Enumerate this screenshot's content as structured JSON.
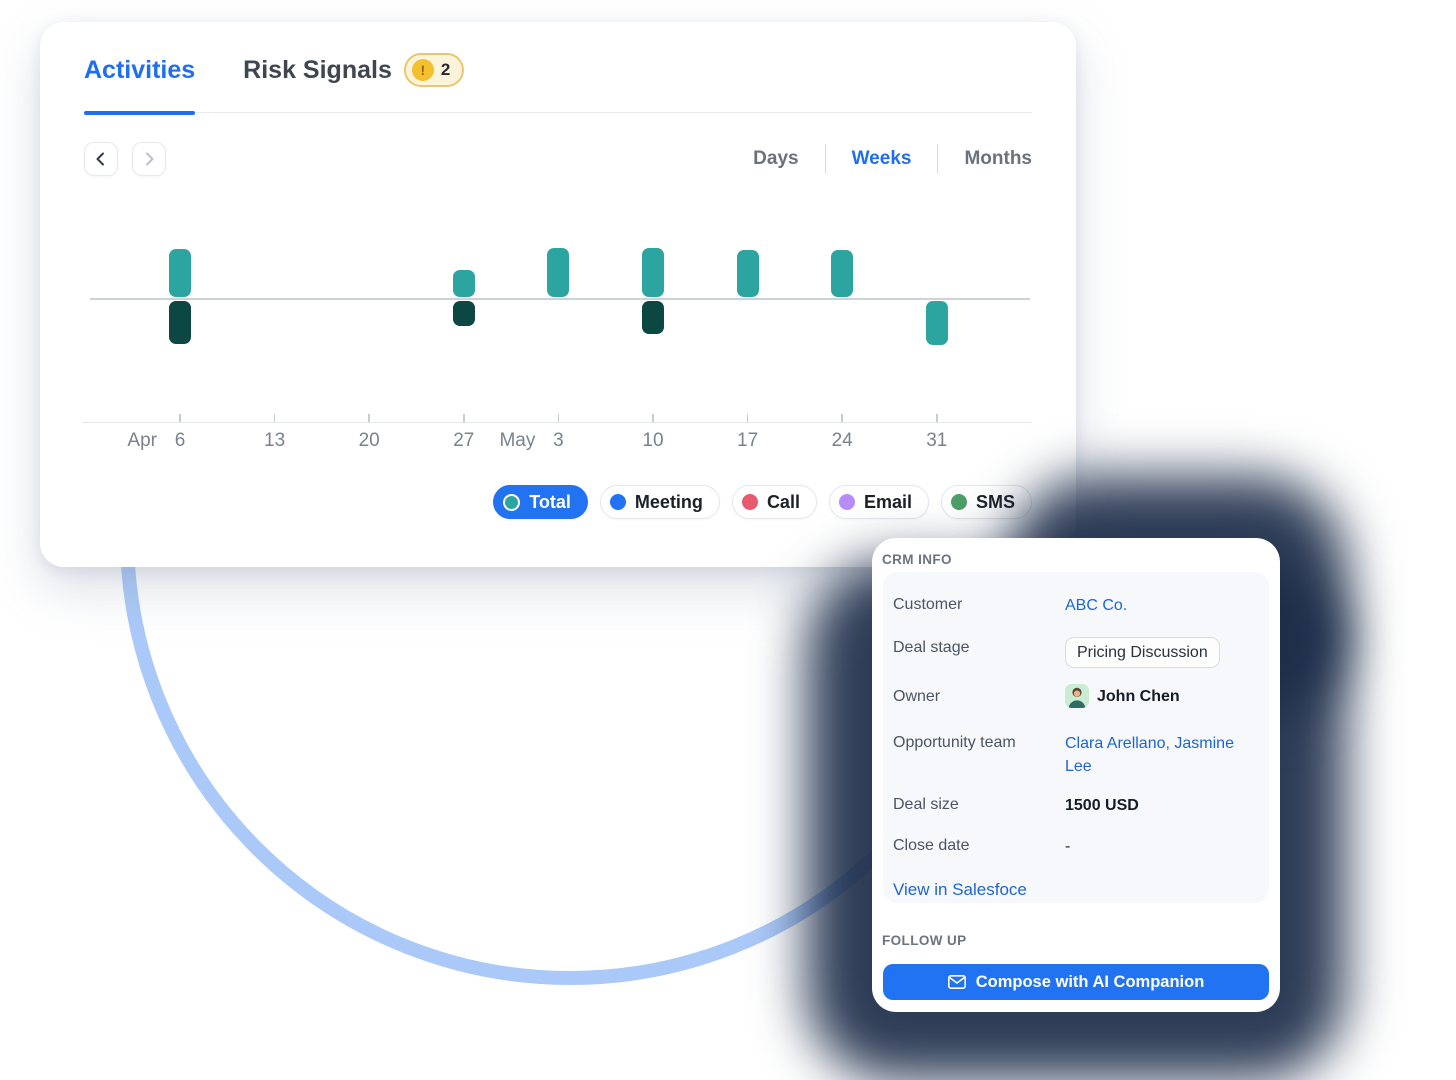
{
  "tabs": {
    "activities": "Activities",
    "risk_signals": "Risk Signals",
    "risk_badge_count": "2"
  },
  "icons": {
    "warning_glyph": "!"
  },
  "toolbar": {
    "days": "Days",
    "weeks": "Weeks",
    "months": "Months"
  },
  "chart_data": {
    "type": "bar",
    "subtype": "diverging weekly activity bars (no y-axis scale shown)",
    "x_ticks": [
      {
        "day": "6",
        "month": "Apr"
      },
      {
        "day": "13"
      },
      {
        "day": "20"
      },
      {
        "day": "27"
      },
      {
        "day": "3",
        "month": "May"
      },
      {
        "day": "10"
      },
      {
        "day": "17"
      },
      {
        "day": "24"
      },
      {
        "day": "31"
      }
    ],
    "series": [
      {
        "name": "above-baseline",
        "color": "#2ca49f",
        "values": [
          48,
          0,
          0,
          27,
          49,
          49,
          47,
          47,
          0
        ]
      },
      {
        "name": "below-baseline",
        "color": "#0d4743",
        "point_colors": [
          "#0d4743",
          "",
          "",
          "#0d4743",
          "",
          "#0d4743",
          "",
          "",
          "#2ca49f"
        ],
        "values": [
          43,
          0,
          0,
          25,
          0,
          33,
          0,
          0,
          44
        ]
      }
    ],
    "legend": [
      {
        "label": "Total",
        "color": "#2ca49f",
        "active": true
      },
      {
        "label": "Meeting",
        "color": "#2273f2",
        "active": false
      },
      {
        "label": "Call",
        "color": "#e85a6e",
        "active": false
      },
      {
        "label": "Email",
        "color": "#b78cf7",
        "active": false
      },
      {
        "label": "SMS",
        "color": "#4f9d67",
        "active": false
      }
    ],
    "grid": false,
    "baseline": true,
    "legend_position": "bottom-right"
  },
  "crm": {
    "section_title": "CRM INFO",
    "customer": {
      "label": "Customer",
      "value": "ABC Co."
    },
    "deal_stage": {
      "label": "Deal stage",
      "value": "Pricing Discussion"
    },
    "owner": {
      "label": "Owner",
      "value": "John Chen"
    },
    "opportunity_team": {
      "label": "Opportunity team",
      "value": "Clara Arellano, Jasmine Lee"
    },
    "deal_size": {
      "label": "Deal size",
      "value": "1500 USD"
    },
    "close_date": {
      "label": "Close date",
      "value": "-"
    },
    "view_link": "View in Salesfoce",
    "followup_title": "FOLLOW UP",
    "compose_button": "Compose with AI Companion"
  },
  "colors": {
    "accent_blue": "#1f6ef2",
    "teal": "#2ca49f",
    "dark_teal": "#0d4743",
    "arc_blue": "#abc9f8",
    "shadow_navy": "#1c2d49"
  }
}
